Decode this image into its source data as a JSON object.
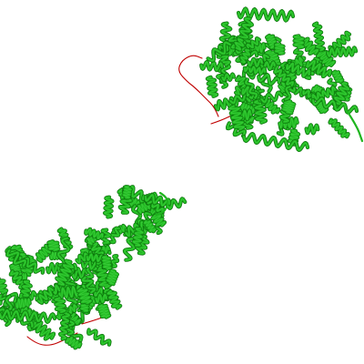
{
  "scene": {
    "background": "#ffffff",
    "palette": {
      "helix": "#1fb51f",
      "helix_light": "#3fd33f",
      "helix_dark": "#0b6a0b",
      "coil": "#c00000"
    },
    "molecules": [
      {
        "name": "protein-chain-upper-right",
        "style": "cartoon",
        "has_coil_segment": true
      },
      {
        "name": "protein-chain-lower-left",
        "style": "cartoon",
        "has_coil_segment": true
      }
    ]
  }
}
